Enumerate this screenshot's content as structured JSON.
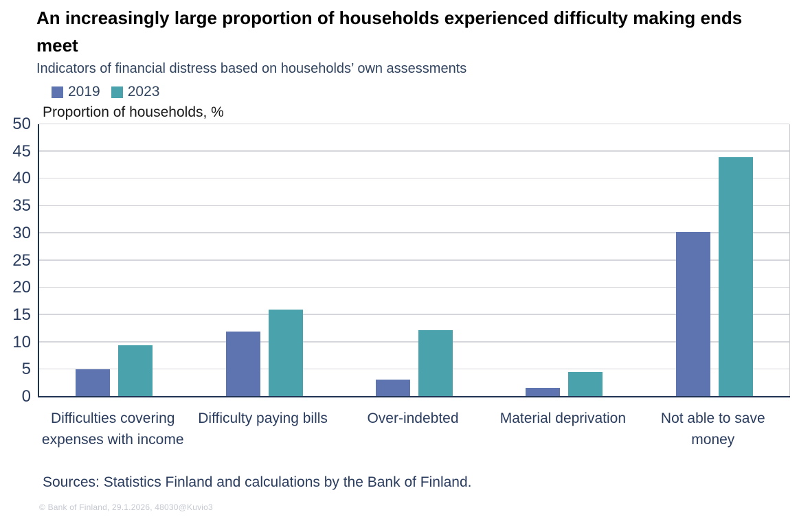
{
  "chart_data": {
    "type": "bar",
    "title": "An increasingly large proportion of households experienced difficulty making ends meet",
    "subtitle": "Indicators of financial distress based on households’ own assessments",
    "ylabel": "Proportion of households, %",
    "xlabel": "",
    "ylim": [
      0,
      50
    ],
    "ytick_step": 5,
    "grid": true,
    "legend_position": "top-left",
    "categories": [
      "Difficulties covering expenses with income",
      "Difficulty paying bills",
      "Over-indebted",
      "Material deprivation",
      "Not able to save money"
    ],
    "series": [
      {
        "name": "2019",
        "color": "#5E74B0",
        "values": [
          5,
          12,
          3.2,
          1.6,
          30.2
        ]
      },
      {
        "name": "2023",
        "color": "#4AA2AC",
        "values": [
          9.5,
          16,
          12.2,
          4.5,
          44
        ]
      }
    ]
  },
  "footer": {
    "sources": "Sources: Statistics Finland and calculations by the Bank of Finland.",
    "copyright": "© Bank of Finland, 29.1.2026, 48030@Kuvio3"
  },
  "colors": {
    "series_2019": "#5E74B0",
    "series_2023": "#4AA2AC",
    "axis_line": "#203353",
    "gridline": "#D5D5DC",
    "text_navy": "#2A3C5E",
    "copyright_gray": "#C4C8D1"
  }
}
